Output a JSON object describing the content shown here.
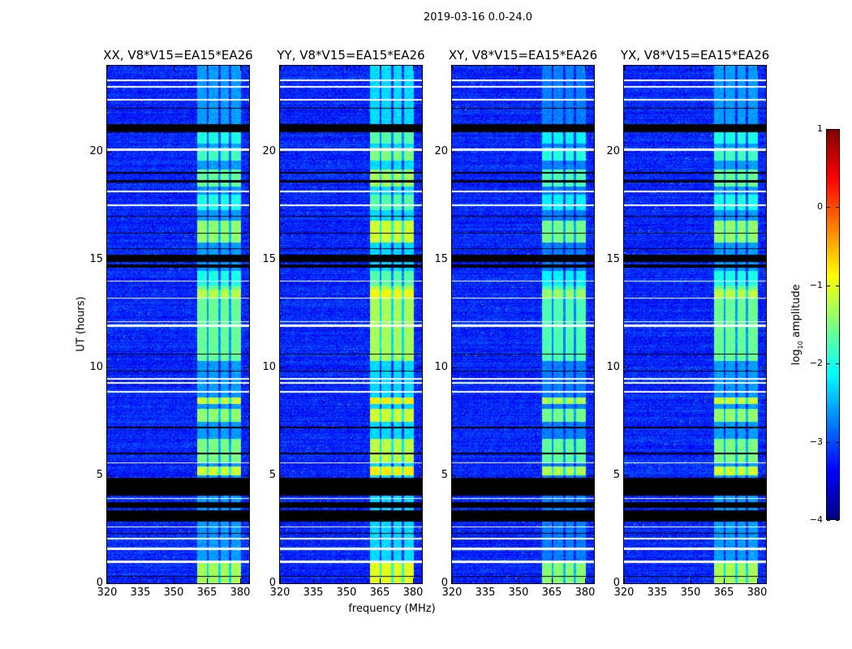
{
  "chart_data": {
    "type": "heatmap",
    "title": "2019-03-16 0.0-24.0",
    "xlabel": "frequency (MHz)",
    "ylabel": "UT (hours)",
    "xlim": [
      320,
      384
    ],
    "ylim": [
      0,
      24
    ],
    "xticks": [
      "320",
      "335",
      "350",
      "365",
      "380"
    ],
    "xtick_values": [
      320,
      335,
      350,
      365,
      380
    ],
    "yticks": [
      "0",
      "5",
      "10",
      "15",
      "20"
    ],
    "ytick_values": [
      0,
      5,
      10,
      15,
      20
    ],
    "panels": [
      {
        "title": "XX, V8*V15=EA15*EA26",
        "level_offset": 0.0
      },
      {
        "title": "YY, V8*V15=EA15*EA26",
        "level_offset": 0.3
      },
      {
        "title": "XY, V8*V15=EA15*EA26",
        "level_offset": -0.15
      },
      {
        "title": "YX, V8*V15=EA15*EA26",
        "level_offset": 0.0
      }
    ],
    "background_log_amplitude": -3.2,
    "rfi_band_mhz": [
      360.5,
      380.5
    ],
    "rfi_subband_gaps_mhz": [
      365.3,
      370.6,
      375.4
    ],
    "rfi_segments": [
      {
        "t": [
          0.0,
          1.0
        ],
        "level": -1.3
      },
      {
        "t": [
          5.0,
          5.4
        ],
        "level": -1.1
      },
      {
        "t": [
          5.6,
          6.7
        ],
        "level": -1.5
      },
      {
        "t": [
          7.5,
          8.1
        ],
        "level": -1.4
      },
      {
        "t": [
          8.3,
          8.6
        ],
        "level": -1.1
      },
      {
        "t": [
          10.3,
          13.8
        ],
        "level": -1.6
      },
      {
        "t": [
          13.2,
          13.6
        ],
        "level": -1.2
      },
      {
        "t": [
          13.8,
          14.5
        ],
        "level": -2.0
      },
      {
        "t": [
          15.8,
          16.8
        ],
        "level": -1.4
      },
      {
        "t": [
          17.3,
          18.0
        ],
        "level": -2.0
      },
      {
        "t": [
          18.4,
          19.2
        ],
        "level": -1.6
      },
      {
        "t": [
          19.6,
          20.2
        ],
        "level": -1.8
      },
      {
        "t": [
          20.4,
          21.0
        ],
        "level": -2.0
      }
    ],
    "flagged_black_hours": [
      [
        2.85,
        3.4
      ],
      [
        3.5,
        3.75
      ],
      [
        4.05,
        4.9
      ],
      [
        14.65,
        14.8
      ],
      [
        14.9,
        15.25
      ],
      [
        20.9,
        21.3
      ],
      [
        18.6,
        18.7
      ],
      [
        19.0,
        19.06
      ],
      [
        15.5,
        15.55
      ],
      [
        16.2,
        16.25
      ],
      [
        17.0,
        17.04
      ],
      [
        6.0,
        6.04
      ],
      [
        7.2,
        7.25
      ],
      [
        9.8,
        9.84
      ],
      [
        10.6,
        10.63
      ],
      [
        2.3,
        2.35
      ],
      [
        0.3,
        0.33
      ],
      [
        22.0,
        22.03
      ]
    ],
    "flagged_white_hours": [
      [
        0.95,
        1.05
      ],
      [
        1.55,
        1.65
      ],
      [
        2.05,
        2.1
      ],
      [
        5.55,
        5.6
      ],
      [
        8.85,
        8.9
      ],
      [
        9.25,
        9.32
      ],
      [
        9.45,
        9.5
      ],
      [
        11.9,
        12.0
      ],
      [
        12.1,
        12.15
      ],
      [
        13.2,
        13.25
      ],
      [
        14.0,
        14.05
      ],
      [
        17.5,
        17.55
      ],
      [
        18.15,
        18.2
      ],
      [
        20.05,
        20.15
      ],
      [
        22.4,
        22.45
      ],
      [
        23.0,
        23.05
      ],
      [
        23.3,
        23.35
      ],
      [
        3.9,
        3.95
      ],
      [
        2.6,
        2.65
      ]
    ],
    "colorbar": {
      "label": "log",
      "label_sub": "10",
      "label_rest": " amplitude",
      "ticks": [
        "1",
        "0",
        "−1",
        "−2",
        "−3",
        "−4"
      ],
      "tick_values": [
        1,
        0,
        -1,
        -2,
        -3,
        -4
      ],
      "range": [
        -4,
        1
      ],
      "colormap": "jet"
    }
  }
}
